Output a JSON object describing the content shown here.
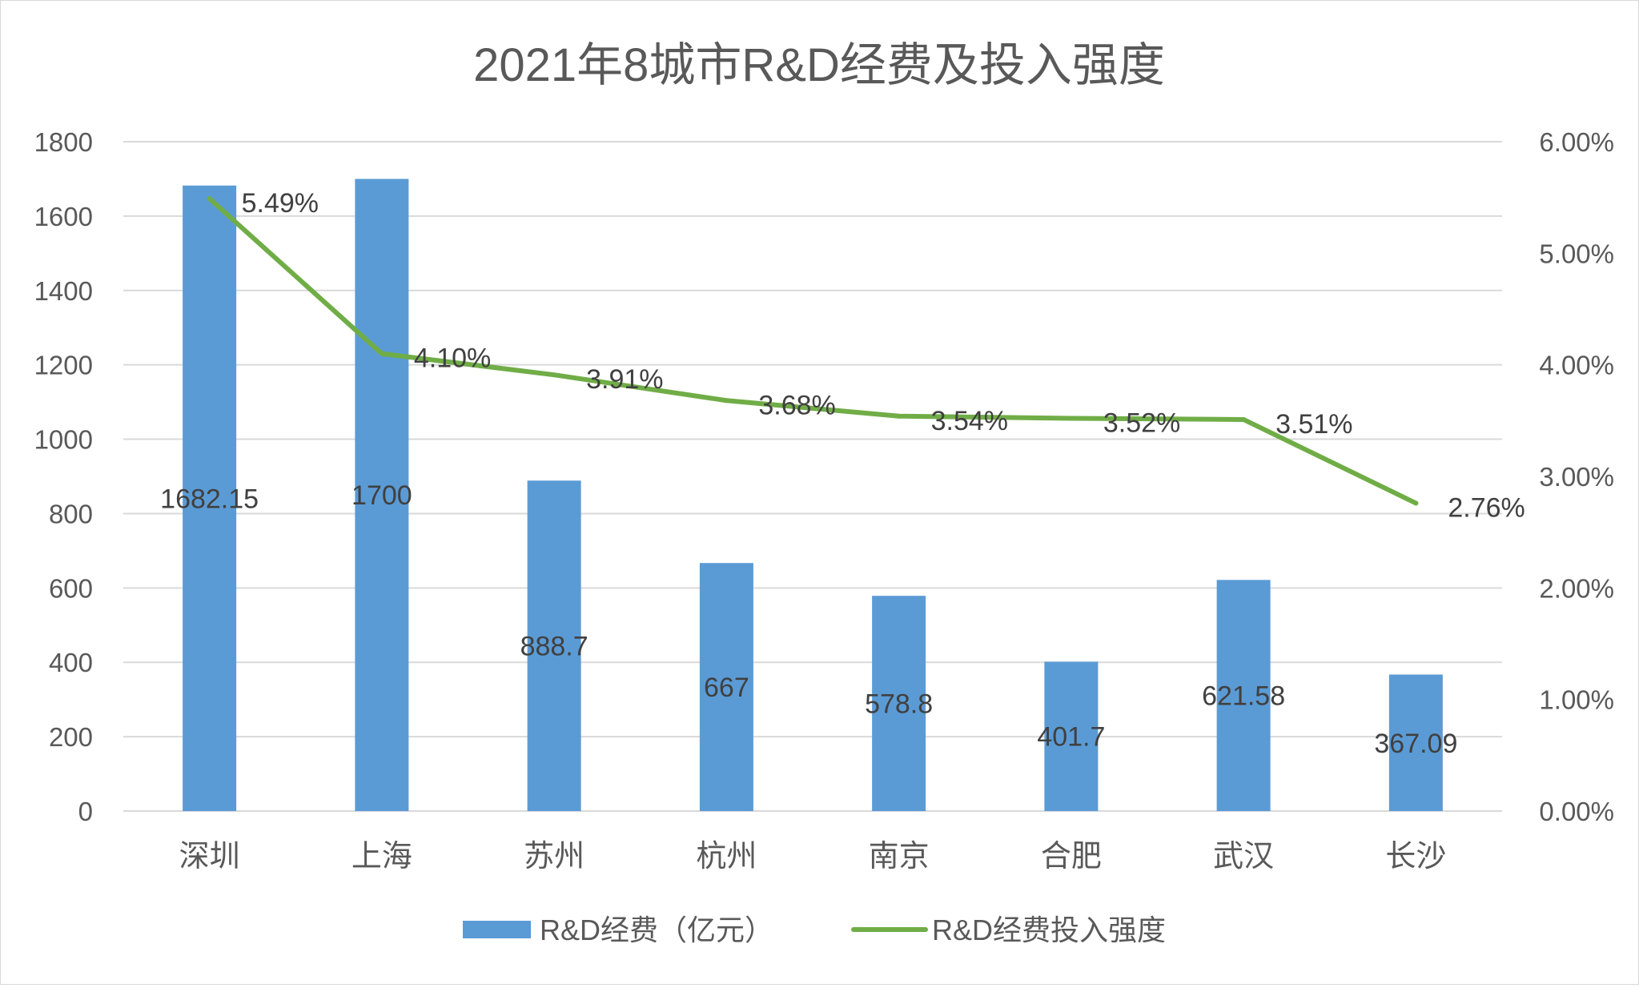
{
  "chart_data": {
    "type": "bar",
    "title": "2021年8城市R&D经费及投入强度",
    "categories": [
      "深圳",
      "上海",
      "苏州",
      "杭州",
      "南京",
      "合肥",
      "武汉",
      "长沙"
    ],
    "series": [
      {
        "name": "R&D经费（亿元）",
        "type": "bar",
        "axis": "left",
        "color": "#5b9bd5",
        "values": [
          1682.15,
          1700,
          888.7,
          667,
          578.8,
          401.7,
          621.58,
          367.09
        ],
        "labels": [
          "1682.15",
          "1700",
          "888.7",
          "667",
          "578.8",
          "401.7",
          "621.58",
          "367.09"
        ]
      },
      {
        "name": "R&D经费投入强度",
        "type": "line",
        "axis": "right",
        "color": "#70ad47",
        "values": [
          5.49,
          4.1,
          3.91,
          3.68,
          3.54,
          3.52,
          3.51,
          2.76
        ],
        "labels": [
          "5.49%",
          "4.10%",
          "3.91%",
          "3.68%",
          "3.54%",
          "3.52%",
          "3.51%",
          "2.76%"
        ]
      }
    ],
    "y_left": {
      "min": 0,
      "max": 1800,
      "ticks": [
        0,
        200,
        400,
        600,
        800,
        1000,
        1200,
        1400,
        1600,
        1800
      ],
      "tick_labels": [
        "0",
        "200",
        "400",
        "600",
        "800",
        "1000",
        "1200",
        "1400",
        "1600",
        "1800"
      ]
    },
    "y_right": {
      "min": 0,
      "max": 6,
      "ticks": [
        0,
        1,
        2,
        3,
        4,
        5,
        6
      ],
      "tick_labels": [
        "0.00%",
        "1.00%",
        "2.00%",
        "3.00%",
        "4.00%",
        "5.00%",
        "6.00%"
      ]
    },
    "grid": true,
    "legend_position": "bottom"
  }
}
